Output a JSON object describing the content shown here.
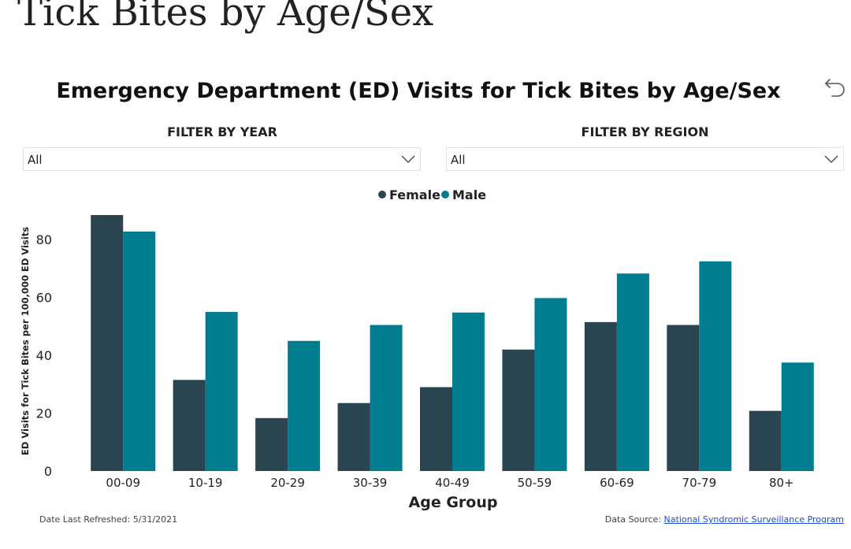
{
  "page": {
    "heading": "Tick Bites by Age/Sex"
  },
  "visual": {
    "title": "Emergency Department (ED) Visits for Tick Bites by Age/Sex",
    "reset_icon": "undo-arrow-icon"
  },
  "filters": {
    "year": {
      "label": "FILTER BY YEAR",
      "value": "All",
      "icon": "chevron-down-icon"
    },
    "region": {
      "label": "FILTER BY REGION",
      "value": "All",
      "icon": "chevron-down-icon"
    }
  },
  "footer": {
    "refreshed": "Date Last Refreshed: 5/31/2021",
    "source_prefix": "Data Source: ",
    "source_link": "National Syndromic Surveillance Program"
  },
  "colors": {
    "female": "#2a4450",
    "male": "#007d8e",
    "axis_text": "#222222"
  },
  "chart_data": {
    "type": "bar",
    "title": "Emergency Department (ED) Visits for Tick Bites by Age/Sex",
    "xlabel": "Age Group",
    "ylabel": "ED Visits for Tick Bites per 100,000 ED Visits",
    "categories": [
      "00-09",
      "10-19",
      "20-29",
      "30-39",
      "40-49",
      "50-59",
      "60-69",
      "70-79",
      "80+"
    ],
    "series": [
      {
        "name": "Female",
        "values": [
          88.5,
          31.5,
          18.3,
          23.5,
          29.0,
          42.0,
          51.5,
          50.5,
          20.8
        ]
      },
      {
        "name": "Male",
        "values": [
          82.8,
          55.0,
          45.0,
          50.5,
          54.8,
          59.8,
          68.3,
          72.5,
          37.5
        ]
      }
    ],
    "yticks": [
      0,
      20,
      40,
      60,
      80
    ],
    "ylim": [
      0,
      90
    ],
    "legend_position": "top-center",
    "grid": false
  }
}
